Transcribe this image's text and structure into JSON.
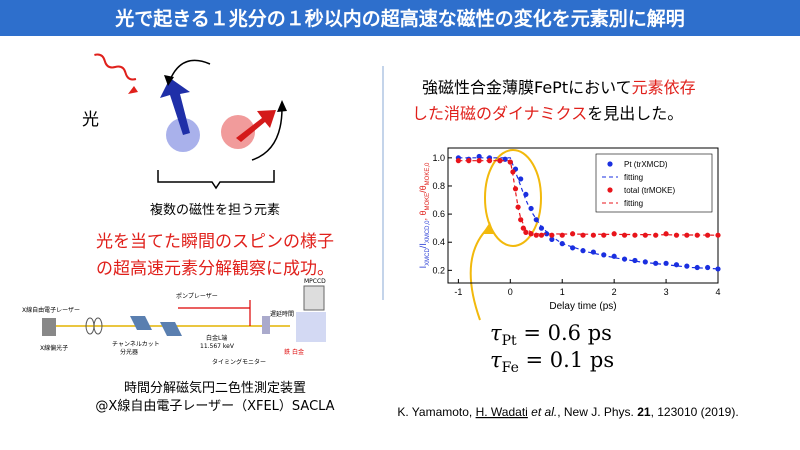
{
  "header": {
    "title": "光で起きる１兆分の１秒以内の超高速な磁性の変化を元素別に解明"
  },
  "left": {
    "light_label": "光",
    "caption": "複数の磁性を担う元素",
    "result_lines": [
      "光を当てた瞬間のスピンの様子",
      "の超高速元素分解観察に成功。"
    ],
    "apparatus_labels": [
      "X線自由電子レーザー",
      "X線偏光子",
      "チャンネルカット",
      "分光器",
      "ポンプレーザー",
      "白金L端",
      "11.567 keV",
      "遅延時間",
      "MPCCD",
      "タイミングモニター",
      "鉄",
      "白金"
    ],
    "apparatus_caption": [
      "時間分解磁気円二色性測定装置",
      "@X線自由電子レーザー（XFEL）SACLA"
    ]
  },
  "right": {
    "statement": [
      [
        {
          "text": "強磁性合金薄膜FePtにおいて",
          "color": "#000000"
        },
        {
          "text": "元素依存",
          "color": "#e0201b"
        }
      ],
      [
        {
          "text": "した消磁のダイナミクス",
          "color": "#e0201b"
        },
        {
          "text": "を見出した。",
          "color": "#000000"
        }
      ]
    ],
    "equations": [
      {
        "symbol": "τ",
        "sub": "Pt",
        "rest": " = 0.6 ps"
      },
      {
        "symbol": "τ",
        "sub": "Fe",
        "rest": " = 0.1 ps"
      }
    ],
    "citation": [
      {
        "text": "K. Yamamoto, "
      },
      {
        "text": "H. Wadati",
        "style": "underline"
      },
      {
        "text": " et al.",
        "style": "italic"
      },
      {
        "text": ", New J. Phys. "
      },
      {
        "text": "21",
        "style": "bold"
      },
      {
        "text": ", 123010 (2019)."
      }
    ]
  },
  "chart_data": {
    "type": "scatter",
    "xlabel": "Delay time (ps)",
    "ylabel": [
      {
        "text": "I",
        "color": "#2b3fd6"
      },
      {
        "text": "XMCD",
        "sub": true,
        "color": "#2b3fd6"
      },
      {
        "text": "/I",
        "color": "#2b3fd6"
      },
      {
        "text": "XMCD,0",
        "sub": true,
        "color": "#2b3fd6"
      },
      {
        "text": ", θ",
        "color": "#e0201b"
      },
      {
        "text": "MOKE",
        "sub": true,
        "color": "#e0201b"
      },
      {
        "text": "/θ",
        "color": "#e0201b"
      },
      {
        "text": "MOKE,0",
        "sub": true,
        "color": "#e0201b"
      }
    ],
    "xlim": [
      -1.2,
      4
    ],
    "ylim": [
      0.11,
      1.07
    ],
    "xticks": [
      -1,
      0,
      1,
      2,
      3,
      4
    ],
    "yticks": [
      0.2,
      0.4,
      0.6,
      0.8,
      {
        "value": 1,
        "label": "1.0"
      }
    ],
    "legend": "upper right",
    "series": [
      {
        "name": "Pt (trXMCD)",
        "color": "#1a2fe0",
        "style": "dots",
        "x": [
          -1,
          -0.8,
          -0.6,
          -0.4,
          -0.2,
          -0.1,
          0,
          0.1,
          0.2,
          0.3,
          0.4,
          0.5,
          0.6,
          0.7,
          0.8,
          1.0,
          1.2,
          1.4,
          1.6,
          1.8,
          2.0,
          2.2,
          2.4,
          2.6,
          2.8,
          3.0,
          3.2,
          3.4,
          3.6,
          3.8,
          4.0
        ],
        "values": [
          1.0,
          0.99,
          1.01,
          1.0,
          0.98,
          0.99,
          0.97,
          0.92,
          0.85,
          0.74,
          0.64,
          0.56,
          0.5,
          0.46,
          0.42,
          0.39,
          0.36,
          0.34,
          0.33,
          0.31,
          0.3,
          0.28,
          0.27,
          0.26,
          0.25,
          0.25,
          0.24,
          0.23,
          0.22,
          0.22,
          0.21
        ]
      },
      {
        "name": "fitting",
        "color": "#1a2fe0",
        "style": "dashed",
        "x": [
          -1,
          0,
          0.1,
          0.2,
          0.3,
          0.4,
          0.6,
          0.8,
          1.0,
          1.5,
          2,
          2.5,
          3,
          3.5,
          4
        ],
        "values": [
          1.0,
          1.0,
          0.9,
          0.8,
          0.7,
          0.62,
          0.51,
          0.44,
          0.39,
          0.33,
          0.29,
          0.26,
          0.24,
          0.22,
          0.21
        ]
      },
      {
        "name": "total (trMOKE)",
        "color": "#e8141b",
        "style": "dots",
        "x": [
          -1,
          -0.8,
          -0.6,
          -0.4,
          -0.2,
          0,
          0.05,
          0.1,
          0.15,
          0.2,
          0.25,
          0.3,
          0.4,
          0.5,
          0.6,
          0.8,
          1.0,
          1.2,
          1.4,
          1.6,
          1.8,
          2.0,
          2.2,
          2.4,
          2.6,
          2.8,
          3.0,
          3.2,
          3.4,
          3.6,
          3.8,
          4.0
        ],
        "values": [
          0.98,
          0.98,
          0.98,
          0.98,
          0.98,
          0.97,
          0.9,
          0.78,
          0.65,
          0.56,
          0.5,
          0.47,
          0.46,
          0.45,
          0.45,
          0.45,
          0.45,
          0.46,
          0.45,
          0.45,
          0.45,
          0.46,
          0.45,
          0.45,
          0.45,
          0.45,
          0.46,
          0.45,
          0.45,
          0.45,
          0.45,
          0.45
        ]
      },
      {
        "name": "fitting",
        "color": "#e8141b",
        "style": "dashed",
        "x": [
          -1,
          0,
          0.05,
          0.1,
          0.15,
          0.2,
          0.3,
          0.5,
          4
        ],
        "values": [
          0.98,
          0.98,
          0.88,
          0.76,
          0.65,
          0.57,
          0.49,
          0.46,
          0.45
        ]
      }
    ]
  }
}
